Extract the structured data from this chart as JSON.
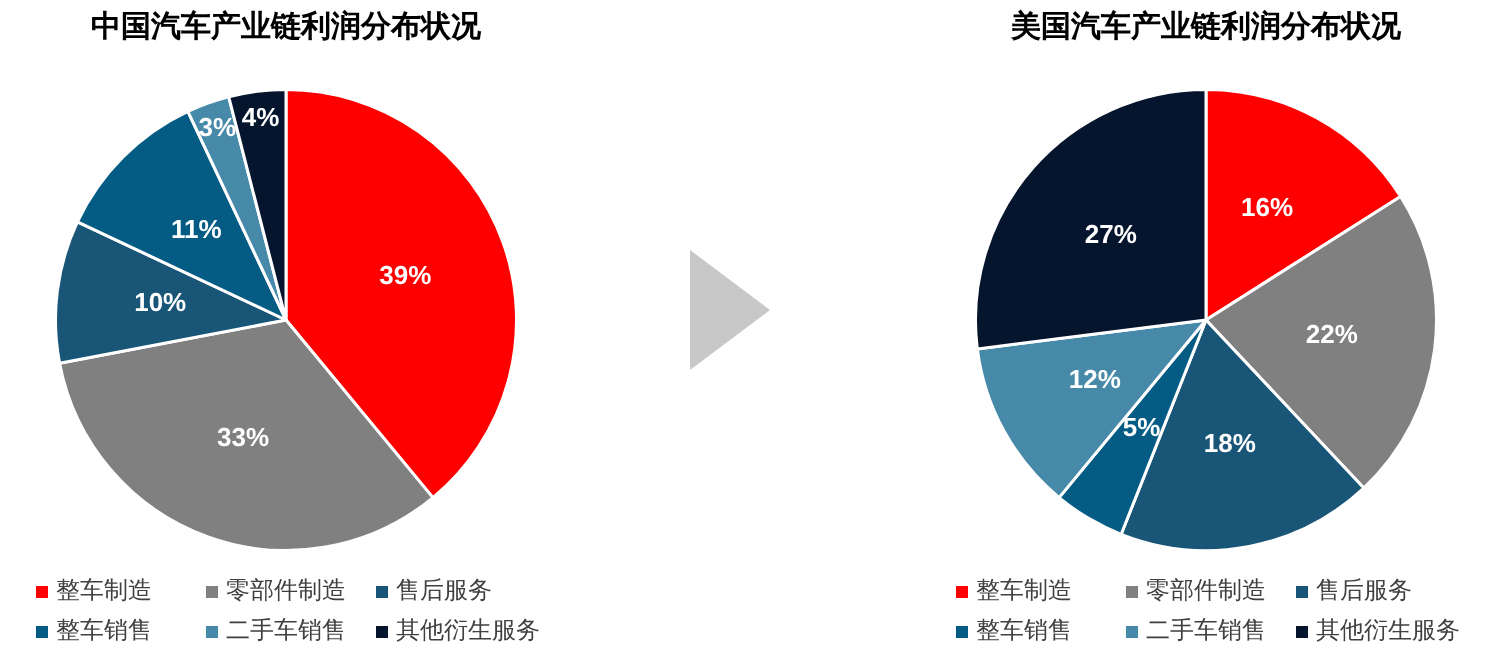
{
  "chart_data": [
    {
      "type": "pie",
      "title": "中国汽车产业链利润分布状况",
      "categories": [
        "整车制造",
        "零部件制造",
        "售后服务",
        "整车销售",
        "二手车销售",
        "其他衍生服务"
      ],
      "values": [
        39,
        33,
        10,
        11,
        3,
        4
      ],
      "colors": [
        "#ff0000",
        "#808080",
        "#185576",
        "#045b84",
        "#4689a8",
        "#06152e"
      ],
      "value_labels": [
        "39%",
        "33%",
        "10%",
        "11%",
        "3%",
        "4%"
      ],
      "legend": "bottom"
    },
    {
      "type": "pie",
      "title": "美国汽车产业链利润分布状况",
      "categories": [
        "整车制造",
        "零部件制造",
        "售后服务",
        "整车销售",
        "二手车销售",
        "其他衍生服务"
      ],
      "values": [
        16,
        22,
        18,
        5,
        12,
        27
      ],
      "colors": [
        "#ff0000",
        "#808080",
        "#185576",
        "#045b84",
        "#4689a8",
        "#06152e"
      ],
      "value_labels": [
        "16%",
        "22%",
        "18%",
        "5%",
        "12%",
        "27%"
      ],
      "legend": "bottom"
    }
  ]
}
